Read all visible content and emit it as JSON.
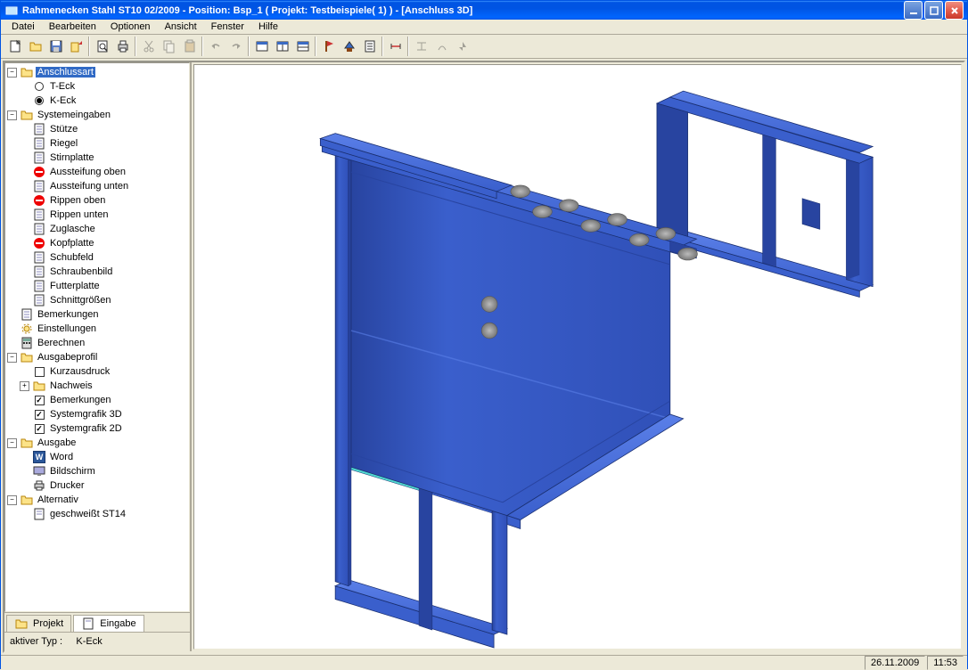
{
  "window": {
    "title": "Rahmenecken Stahl ST10 02/2009 - Position: Bsp_1 ( Projekt: Testbeispiele( 1) ) - [Anschluss 3D]"
  },
  "menu": {
    "items": [
      "Datei",
      "Bearbeiten",
      "Optionen",
      "Ansicht",
      "Fenster",
      "Hilfe"
    ]
  },
  "toolbar": {
    "groups": [
      [
        "new",
        "open",
        "save",
        "export"
      ],
      [
        "preview",
        "print"
      ],
      [
        "cut",
        "copy",
        "paste"
      ],
      [
        "undo",
        "redo"
      ],
      [
        "win1",
        "win2",
        "win3"
      ],
      [
        "flag",
        "render",
        "doc"
      ],
      [
        "dim"
      ],
      [
        "m1",
        "m2",
        "m3"
      ]
    ]
  },
  "tree": {
    "anschlussart": {
      "label": "Anschlussart",
      "t_eck": "T-Eck",
      "k_eck": "K-Eck"
    },
    "systemeingaben": {
      "label": "Systemeingaben",
      "items": [
        {
          "label": "Stütze",
          "icon": "doc"
        },
        {
          "label": "Riegel",
          "icon": "doc"
        },
        {
          "label": "Stirnplatte",
          "icon": "doc"
        },
        {
          "label": "Aussteifung oben",
          "icon": "prohibit"
        },
        {
          "label": "Aussteifung unten",
          "icon": "doc"
        },
        {
          "label": "Rippen oben",
          "icon": "prohibit"
        },
        {
          "label": "Rippen unten",
          "icon": "doc"
        },
        {
          "label": "Zuglasche",
          "icon": "doc"
        },
        {
          "label": "Kopfplatte",
          "icon": "prohibit"
        },
        {
          "label": "Schubfeld",
          "icon": "doc"
        },
        {
          "label": "Schraubenbild",
          "icon": "doc"
        },
        {
          "label": "Futterplatte",
          "icon": "doc"
        },
        {
          "label": "Schnittgrößen",
          "icon": "doc"
        }
      ]
    },
    "bemerkungen": "Bemerkungen",
    "einstellungen": "Einstellungen",
    "berechnen": "Berechnen",
    "ausgabeprofil": {
      "label": "Ausgabeprofil",
      "kurzausdruck": "Kurzausdruck",
      "nachweis": "Nachweis",
      "bemerkungen": "Bemerkungen",
      "sysgrafik3d": "Systemgrafik 3D",
      "sysgrafik2d": "Systemgrafik 2D"
    },
    "ausgabe": {
      "label": "Ausgabe",
      "word": "Word",
      "bildschirm": "Bildschirm",
      "drucker": "Drucker"
    },
    "alternativ": {
      "label": "Alternativ",
      "geschweisst": "geschweißt ST14"
    }
  },
  "tabs": {
    "projekt": "Projekt",
    "eingabe": "Eingabe"
  },
  "status": {
    "aktiver_typ_label": "aktiver Typ :",
    "aktiver_typ_value": "K-Eck"
  },
  "statusbar": {
    "date": "26.11.2009",
    "time": "11:53"
  },
  "viewport": {
    "beam_color": "#3a5fcc",
    "beam_light": "#5a7fe8",
    "beam_dark": "#2844a0",
    "beam_edge": "#1a2f70",
    "bolt_color": "#888888",
    "bolt_top": "#aaaaaa",
    "bolt_dark": "#666666",
    "cyan_edge": "#50d8d0"
  }
}
